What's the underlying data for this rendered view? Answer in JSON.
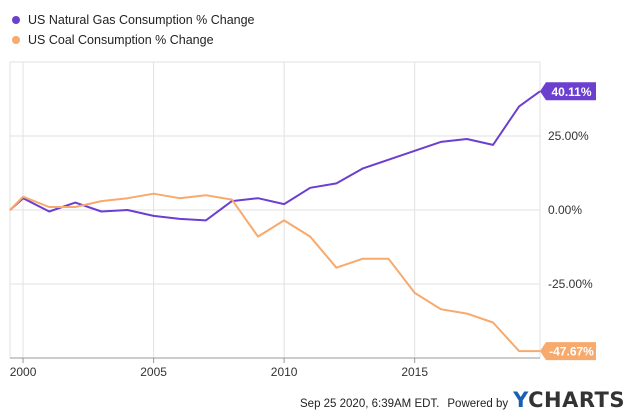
{
  "colors": {
    "gas": "#6b3fcf",
    "coal": "#f8a96c",
    "grid": "#e2e2e2",
    "axis": "#999999"
  },
  "chart_data": {
    "type": "line",
    "title": "",
    "xlabel": "",
    "ylabel": "",
    "x_ticks": [
      "2000",
      "2005",
      "2010",
      "2015"
    ],
    "y_ticks": [
      "25.00%",
      "0.00%",
      "-25.00%"
    ],
    "xlim": [
      1999.5,
      2019.8
    ],
    "ylim": [
      -50,
      50
    ],
    "grid": true,
    "legend_position": "top-left",
    "series": [
      {
        "name": "US Natural Gas Consumption % Change",
        "color": "#6b3fcf",
        "end_label": "40.11%",
        "x": [
          1999.5,
          2000,
          2001,
          2002,
          2003,
          2004,
          2005,
          2006,
          2007,
          2008,
          2009,
          2010,
          2011,
          2012,
          2013,
          2014,
          2015,
          2016,
          2017,
          2018,
          2019,
          2019.8
        ],
        "y": [
          0,
          4,
          -0.5,
          2.5,
          -0.5,
          0,
          -2,
          -3,
          -3.5,
          3,
          4,
          2,
          7.5,
          9,
          14,
          17,
          20,
          23,
          24,
          22,
          35,
          40.11
        ]
      },
      {
        "name": "US Coal Consumption % Change",
        "color": "#f8a96c",
        "end_label": "-47.67%",
        "x": [
          1999.5,
          2000,
          2001,
          2002,
          2003,
          2004,
          2005,
          2006,
          2007,
          2008,
          2009,
          2010,
          2011,
          2012,
          2013,
          2014,
          2015,
          2016,
          2017,
          2018,
          2019,
          2019.8
        ],
        "y": [
          0,
          4.5,
          1,
          1,
          3,
          4,
          5.5,
          4,
          5,
          3.5,
          -9,
          -3.5,
          -9,
          -19.5,
          -16.5,
          -16.5,
          -28,
          -33.5,
          -35,
          -38,
          -47.67,
          -47.67
        ]
      }
    ]
  },
  "footer": {
    "timestamp": "Sep 25 2020, 6:39AM EDT.",
    "powered": "Powered by",
    "logo_y": "Y",
    "logo_rest": "CHARTS"
  }
}
